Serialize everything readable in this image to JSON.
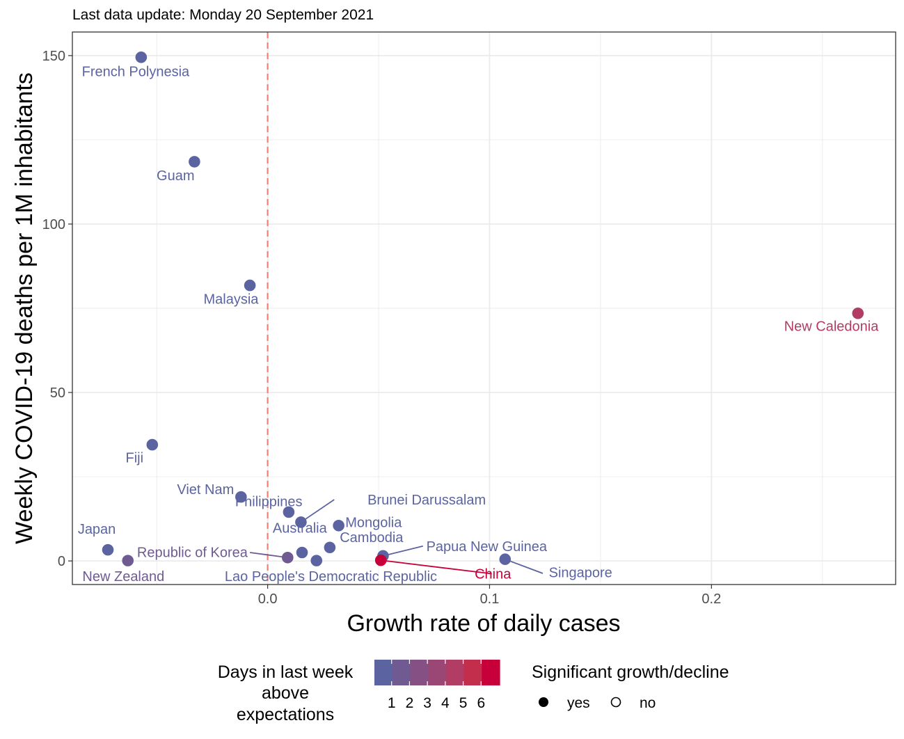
{
  "chart_data": {
    "type": "scatter",
    "subtitle": "Last data update: Monday 20 September 2021",
    "xlabel": "Growth rate of daily cases",
    "ylabel": "Weekly COVID-19 deaths per 1M inhabitants",
    "xlim": [
      -0.088,
      0.283
    ],
    "ylim": [
      -7,
      157
    ],
    "xticks": [
      0.0,
      0.1,
      0.2
    ],
    "xtick_labels": [
      "0.0",
      "0.1",
      "0.2"
    ],
    "yticks": [
      0,
      50,
      100,
      150
    ],
    "ytick_labels": [
      "0",
      "50",
      "100",
      "150"
    ],
    "grid": true,
    "reference_line": {
      "x": 0,
      "color": "#f08070",
      "style": "dashed"
    },
    "points": [
      {
        "name": "French Polynesia",
        "x": -0.057,
        "y": 149.5,
        "days": 0,
        "significant": true,
        "label_dx": -0.0025,
        "label_dy": -4.2,
        "anchor": "middle"
      },
      {
        "name": "Guam",
        "x": -0.033,
        "y": 118.5,
        "days": 0,
        "significant": true,
        "label_dx": -0.0085,
        "label_dy": -4.0,
        "anchor": "middle"
      },
      {
        "name": "Malaysia",
        "x": -0.008,
        "y": 81.8,
        "days": 0,
        "significant": true,
        "label_dx": -0.0085,
        "label_dy": -4.0,
        "anchor": "middle"
      },
      {
        "name": "New Caledonia",
        "x": 0.266,
        "y": 73.5,
        "days": 4,
        "significant": true,
        "label_dx": -0.012,
        "label_dy": -3.8,
        "anchor": "middle"
      },
      {
        "name": "Fiji",
        "x": -0.052,
        "y": 34.5,
        "days": 0,
        "significant": true,
        "label_dx": -0.008,
        "label_dy": -3.8,
        "anchor": "middle"
      },
      {
        "name": "Viet Nam",
        "x": -0.012,
        "y": 19.0,
        "days": 0,
        "significant": true,
        "label_dx": -0.016,
        "label_dy": 2.3,
        "anchor": "middle"
      },
      {
        "name": "Philippines",
        "x": 0.0095,
        "y": 14.5,
        "days": 0,
        "significant": true,
        "label_dx": -0.009,
        "label_dy": 3.2,
        "anchor": "middle"
      },
      {
        "name": "Brunei Darussalam",
        "x": 0.015,
        "y": 11.5,
        "days": 0,
        "significant": true,
        "label_dx": 0.03,
        "label_dy": 6.7,
        "anchor": "start",
        "line_to": [
          0.03,
          18.2
        ]
      },
      {
        "name": "Mongolia",
        "x": 0.032,
        "y": 10.5,
        "days": 0,
        "significant": true,
        "label_dx": 0.003,
        "label_dy": 1.0,
        "anchor": "start"
      },
      {
        "name": "Japan",
        "x": -0.072,
        "y": 3.3,
        "days": 0,
        "significant": true,
        "label_dx": -0.005,
        "label_dy": 6.2,
        "anchor": "middle"
      },
      {
        "name": "Australia",
        "x": 0.0155,
        "y": 2.5,
        "days": 0,
        "significant": true,
        "label_dx": -0.001,
        "label_dy": 7.3,
        "anchor": "middle"
      },
      {
        "name": "Cambodia",
        "x": 0.028,
        "y": 4.0,
        "days": 0,
        "significant": true,
        "label_dx": 0.0045,
        "label_dy": 3.0,
        "anchor": "start"
      },
      {
        "name": "Papua New Guinea",
        "x": 0.052,
        "y": 1.5,
        "days": 0,
        "significant": true,
        "label_dx": 0.0195,
        "label_dy": 2.9,
        "anchor": "start",
        "line_to": [
          0.07,
          4.4
        ]
      },
      {
        "name": "Republic of Korea",
        "x": 0.009,
        "y": 1.0,
        "days": 1,
        "significant": true,
        "label_dx": -0.018,
        "label_dy": 1.6,
        "anchor": "end",
        "line_to": [
          -0.008,
          2.5
        ]
      },
      {
        "name": "New Zealand",
        "x": -0.063,
        "y": 0.1,
        "days": 1,
        "significant": true,
        "label_dx": -0.002,
        "label_dy": -4.6,
        "anchor": "middle"
      },
      {
        "name": "Lao People's Democratic Republic",
        "x": 0.022,
        "y": 0.1,
        "days": 0,
        "significant": true,
        "label_dx": 0.0065,
        "label_dy": -4.6,
        "anchor": "middle"
      },
      {
        "name": "China",
        "x": 0.051,
        "y": 0.2,
        "days": 6,
        "significant": true,
        "label_dx": 0.0505,
        "label_dy": -4.0,
        "anchor": "middle",
        "line_to": [
          0.101,
          -3.8
        ]
      },
      {
        "name": "Singapore",
        "x": 0.107,
        "y": 0.5,
        "days": 0,
        "significant": true,
        "label_dx": 0.034,
        "label_dy": -3.9,
        "anchor": "middle",
        "line_to": [
          0.124,
          -3.7
        ]
      }
    ],
    "legend_color": {
      "title_lines": [
        "Days in last week",
        "above",
        "expectations"
      ],
      "ticks": [
        "1",
        "2",
        "3",
        "4",
        "5",
        "6"
      ],
      "colors": [
        "#5b64a0",
        "#6f5a92",
        "#855184",
        "#9b4775",
        "#b13c64",
        "#c42e4d",
        "#c8003a"
      ]
    },
    "legend_shape": {
      "title": "Significant growth/decline",
      "items": [
        "yes",
        "no"
      ]
    }
  }
}
